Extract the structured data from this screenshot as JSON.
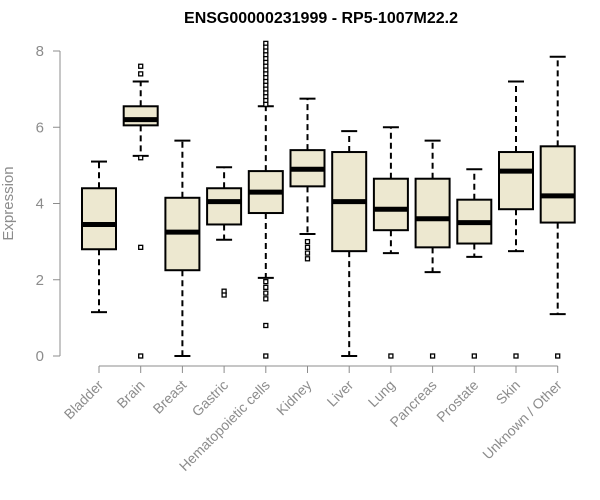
{
  "chart_data": {
    "type": "boxplot",
    "title": "ENSG00000231999 - RP5-1007M22.2",
    "xlabel": "",
    "ylabel": "Expression",
    "ylim": [
      0,
      8
    ],
    "yticks": [
      0,
      2,
      4,
      6,
      8
    ],
    "categories": [
      "Bladder",
      "Brain",
      "Breast",
      "Gastric",
      "Hematopoietic cells",
      "Kidney",
      "Liver",
      "Lung",
      "Pancreas",
      "Prostate",
      "Skin",
      "Unknown / Other"
    ],
    "box_fill": "#ede8d0",
    "series": [
      {
        "name": "Bladder",
        "whisker_low": 1.15,
        "q1": 2.8,
        "median": 3.45,
        "q3": 4.4,
        "whisker_high": 5.1,
        "outliers": []
      },
      {
        "name": "Brain",
        "whisker_low": 5.25,
        "q1": 6.05,
        "median": 6.2,
        "q3": 6.55,
        "whisker_high": 7.2,
        "outliers": [
          7.4,
          7.6,
          5.2,
          2.85,
          0.0
        ]
      },
      {
        "name": "Breast",
        "whisker_low": 0.0,
        "q1": 2.25,
        "median": 3.25,
        "q3": 4.15,
        "whisker_high": 5.65,
        "outliers": []
      },
      {
        "name": "Gastric",
        "whisker_low": 3.05,
        "q1": 3.45,
        "median": 4.05,
        "q3": 4.4,
        "whisker_high": 4.95,
        "outliers": [
          1.7,
          1.6
        ]
      },
      {
        "name": "Hematopoietic cells",
        "whisker_low": 2.05,
        "q1": 3.75,
        "median": 4.3,
        "q3": 4.85,
        "whisker_high": 6.55,
        "outliers": [
          8.2,
          8.1,
          8.0,
          7.9,
          7.8,
          7.7,
          7.6,
          7.5,
          7.4,
          7.3,
          7.2,
          7.1,
          7.0,
          6.9,
          6.8,
          6.7,
          6.6,
          1.95,
          1.8,
          1.65,
          1.5,
          0.8,
          0.0
        ]
      },
      {
        "name": "Kidney",
        "whisker_low": 3.2,
        "q1": 4.45,
        "median": 4.9,
        "q3": 5.4,
        "whisker_high": 6.75,
        "outliers": [
          3.0,
          2.85,
          2.7,
          2.55
        ]
      },
      {
        "name": "Liver",
        "whisker_low": 0.0,
        "q1": 2.75,
        "median": 4.05,
        "q3": 5.35,
        "whisker_high": 5.9,
        "outliers": []
      },
      {
        "name": "Lung",
        "whisker_low": 2.7,
        "q1": 3.3,
        "median": 3.85,
        "q3": 4.65,
        "whisker_high": 6.0,
        "outliers": [
          0.0
        ]
      },
      {
        "name": "Pancreas",
        "whisker_low": 2.2,
        "q1": 2.85,
        "median": 3.6,
        "q3": 4.65,
        "whisker_high": 5.65,
        "outliers": [
          0.0
        ]
      },
      {
        "name": "Prostate",
        "whisker_low": 2.6,
        "q1": 2.95,
        "median": 3.5,
        "q3": 4.1,
        "whisker_high": 4.9,
        "outliers": [
          0.0
        ]
      },
      {
        "name": "Skin",
        "whisker_low": 2.75,
        "q1": 3.85,
        "median": 4.85,
        "q3": 5.35,
        "whisker_high": 7.2,
        "outliers": [
          0.0
        ]
      },
      {
        "name": "Unknown / Other",
        "whisker_low": 1.1,
        "q1": 3.5,
        "median": 4.2,
        "q3": 5.5,
        "whisker_high": 7.85,
        "outliers": [
          0.0
        ]
      }
    ]
  }
}
